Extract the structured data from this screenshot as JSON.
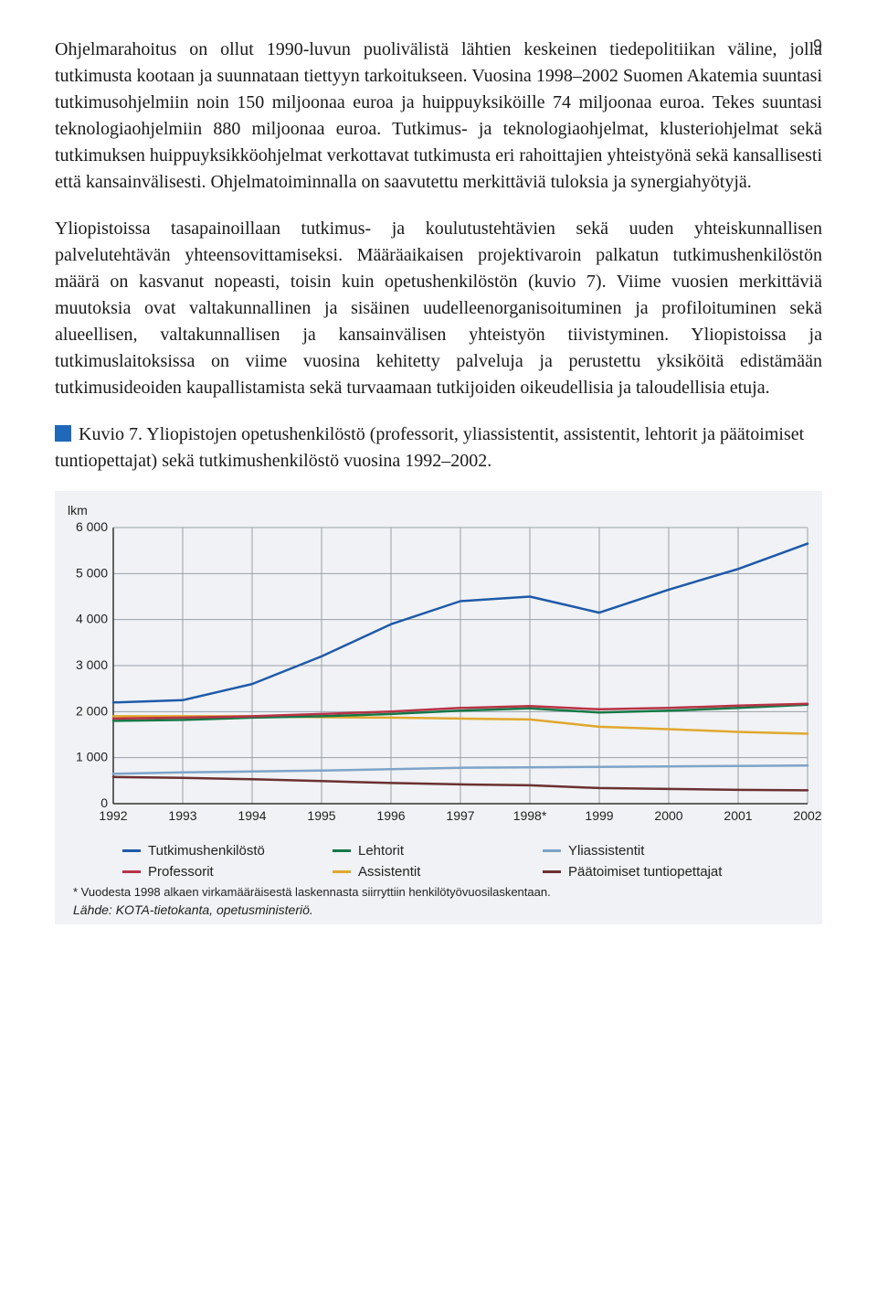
{
  "page_number": "9",
  "paragraphs": {
    "p1": "Ohjelmarahoitus on ollut 1990-luvun puolivälistä lähtien keskeinen tiedepolitiikan väline, jolla tutkimusta kootaan ja suunnataan tiettyyn tarkoitukseen. Vuosina 1998–2002 Suomen Akatemia suuntasi tutkimusohjelmiin noin 150 miljoonaa euroa ja huippuyksiköille 74 miljoonaa euroa. Tekes suuntasi teknologiaohjelmiin 880 miljoonaa euroa. Tutkimus- ja teknologiaohjelmat, klusteriohjelmat sekä tutkimuksen huippuyksikköohjelmat verkottavat tutkimusta eri rahoittajien yhteistyönä sekä kansallisesti että kansainvälisesti. Ohjelmatoiminnalla on saavutettu merkittäviä tuloksia ja synergiahyötyjä.",
    "p2": "Yliopistoissa tasapainoillaan tutkimus- ja koulutustehtävien sekä uuden yhteiskunnallisen palvelutehtävän yhteensovittamiseksi. Määräaikaisen projektivaroin palkatun tutkimushenkilöstön määrä on kasvanut nopeasti, toisin kuin opetushenkilöstön (kuvio 7). Viime vuosien merkittäviä muutoksia ovat valtakunnallinen ja sisäinen uudelleenorganisoituminen ja profiloituminen sekä alueellisen, valtakunnallisen ja kansainvälisen yhteistyön tiivistyminen. Yliopistoissa ja tutkimuslaitoksissa on viime vuosina kehitetty palveluja ja perustettu yksiköitä edistämään tutkimusideoiden kaupallistamista sekä turvaamaan tutkijoiden oikeudellisia ja taloudellisia etuja."
  },
  "caption": "Kuvio 7. Yliopistojen opetushenkilöstö (professorit, yliassistentit, assistentit, lehtorit ja päätoimiset tuntiopettajat) sekä tutkimushenkilöstö vuosina 1992–2002.",
  "chart": {
    "type": "line",
    "background_color": "#f0f2f5",
    "grid_color": "#9aa0a8",
    "axis_color": "#333333",
    "plot_bg": "#ffffff",
    "y_axis_title": "lkm",
    "ylim": [
      0,
      6000
    ],
    "ytick_step": 1000,
    "yticks": [
      "0",
      "1 000",
      "2 000",
      "3 000",
      "4 000",
      "5 000",
      "6 000"
    ],
    "x_labels": [
      "1992",
      "1993",
      "1994",
      "1995",
      "1996",
      "1997",
      "1998*",
      "1999",
      "2000",
      "2001",
      "2002"
    ],
    "line_width": 2.5,
    "label_fontsize": 14,
    "label_font": "Arial",
    "series": {
      "tutkimus": {
        "label": "Tutkimushenkilöstö",
        "color": "#1e5aa8",
        "values": [
          2200,
          2250,
          2600,
          3200,
          3900,
          4400,
          4500,
          4150,
          4650,
          5100,
          5650
        ]
      },
      "professorit": {
        "label": "Professorit",
        "color": "#b83246",
        "values": [
          1850,
          1870,
          1900,
          1950,
          2000,
          2080,
          2120,
          2050,
          2080,
          2130,
          2170
        ]
      },
      "lehtorit": {
        "label": "Lehtorit",
        "color": "#147846",
        "values": [
          1800,
          1820,
          1870,
          1900,
          1950,
          2020,
          2070,
          1980,
          2020,
          2080,
          2150
        ]
      },
      "assistentit": {
        "label": "Assistentit",
        "color": "#e0a82e",
        "values": [
          1900,
          1900,
          1900,
          1880,
          1870,
          1850,
          1830,
          1670,
          1620,
          1560,
          1520
        ]
      },
      "yliassistentit": {
        "label": "Yliassistentit",
        "color": "#7ea4c8",
        "values": [
          650,
          680,
          700,
          720,
          750,
          780,
          790,
          800,
          810,
          820,
          830
        ]
      },
      "paatoimiset": {
        "label": "Päätoimiset tuntiopettajat",
        "color": "#6b3030",
        "values": [
          580,
          560,
          530,
          490,
          450,
          420,
          400,
          340,
          320,
          300,
          290
        ]
      }
    }
  },
  "footnote": "* Vuodesta 1998 alkaen virkamääräisestä laskennasta siirryttiin henkilötyövuosilaskentaan.",
  "source": "Lähde: KOTA-tietokanta, opetusministeriö."
}
